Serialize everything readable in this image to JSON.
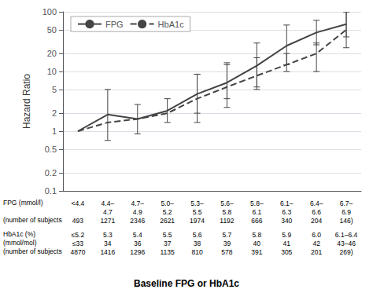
{
  "chart_data": {
    "type": "line",
    "ylabel": "Hazard Ratio",
    "xlabel": "Baseline FPG or HbA1c",
    "x": [
      1,
      2,
      3,
      4,
      5,
      6,
      7,
      8,
      9,
      10
    ],
    "xlim": [
      0.5,
      10.5
    ],
    "xticks": [],
    "ylim": [
      0.1,
      100
    ],
    "yticks": [
      0.1,
      0.2,
      0.5,
      1,
      2,
      5,
      10,
      20,
      50,
      100
    ],
    "log": "y",
    "grid": true,
    "legend": "upper left",
    "tick_labels": "y",
    "series": [
      {
        "name": "FPG",
        "color": "#444444",
        "line_style": "solid",
        "values": [
          1.0,
          1.9,
          1.6,
          2.2,
          4.2,
          6.5,
          12.5,
          27.0,
          45.0,
          62.0
        ],
        "ci_lo": [
          null,
          0.7,
          0.9,
          1.4,
          2.0,
          3.5,
          5.5,
          13.0,
          28.0,
          38.0
        ],
        "ci_hi": [
          null,
          5.0,
          2.8,
          3.5,
          9.0,
          13.0,
          30.0,
          60.0,
          72.0,
          100.0
        ]
      },
      {
        "name": "HbA1c",
        "color": "#444444",
        "line_style": "dashed",
        "values": [
          1.0,
          1.4,
          1.6,
          2.0,
          3.5,
          5.5,
          8.5,
          13.0,
          20.0,
          50.0
        ],
        "ci_lo": [
          null,
          null,
          null,
          null,
          1.4,
          2.5,
          5.0,
          10.0,
          10.0,
          25.0
        ],
        "ci_hi": [
          null,
          null,
          null,
          null,
          9.0,
          14.0,
          17.0,
          20.0,
          30.0,
          100.0
        ]
      }
    ],
    "table": [
      [
        {
          "label": "FPG (mmol/l)",
          "cells": [
            "<4.4",
            "4.4–\n4.7",
            "4.7–\n4.9",
            "5.0–\n5.2",
            "5.3–\n5.5",
            "5.6–\n5.8",
            "5.8–\n6.1",
            "6.1–\n6.3",
            "6.4–\n6.6",
            "6.7–\n6.9"
          ]
        },
        {
          "label": "(number of subjects",
          "cells": [
            "493",
            "1271",
            "2346",
            "2621",
            "1974",
            "1192",
            "666",
            "340",
            "204",
            "146)"
          ]
        }
      ],
      [
        {
          "label": "HbA1c (%)",
          "cells": [
            "≤5.2",
            "5.3",
            "5.4",
            "5.5",
            "5.6",
            "5.7",
            "5.8",
            "5.9",
            "6.0",
            "6.1–6.4"
          ]
        },
        {
          "label": "(mmol/mol)",
          "cells": [
            "≤33",
            "34",
            "36",
            "37",
            "38",
            "39",
            "40",
            "41",
            "42",
            "43–46"
          ]
        },
        {
          "label": "(number of subjects",
          "cells": [
            "4870",
            "1416",
            "1296",
            "1135",
            "810",
            "578",
            "391",
            "305",
            "201",
            "269)"
          ]
        }
      ]
    ]
  }
}
